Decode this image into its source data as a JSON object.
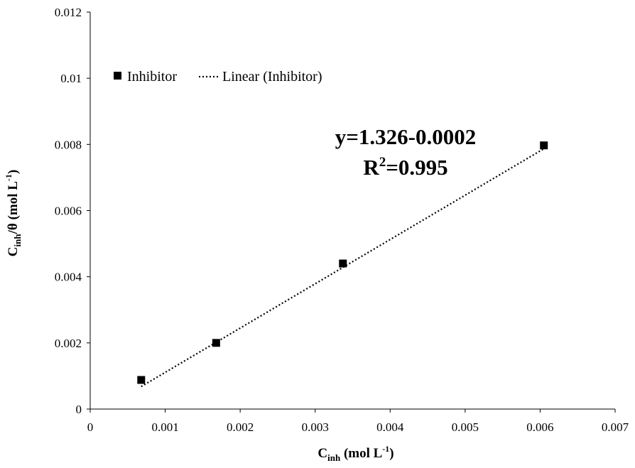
{
  "chart_data": {
    "type": "scatter",
    "x_axis": {
      "label_main": "C",
      "label_sub": "inh",
      "label_unit_pre": " (mol L",
      "label_unit_sup": "-1",
      "label_unit_post": ")",
      "lim": [
        0,
        0.007
      ],
      "ticks": [
        "0",
        "0.001",
        "0.002",
        "0.003",
        "0.004",
        "0.005",
        "0.006",
        "0.007"
      ],
      "tick_values": [
        0,
        0.001,
        0.002,
        0.003,
        0.004,
        0.005,
        0.006,
        0.007
      ]
    },
    "y_axis": {
      "label_main": "C",
      "label_sub": "inh",
      "label_mid": "/θ (mol L",
      "label_unit_sup": "-1",
      "label_unit_post": ")",
      "lim": [
        0,
        0.012
      ],
      "ticks": [
        "0",
        "0.002",
        "0.004",
        "0.006",
        "0.008",
        "0.01",
        "0.012"
      ],
      "tick_values": [
        0,
        0.002,
        0.004,
        0.006,
        0.008,
        0.01,
        0.012
      ]
    },
    "series": [
      {
        "name": "Inhibitor",
        "marker": "square",
        "color": "#000000",
        "points": [
          {
            "x": 0.00068,
            "y": 0.00088
          },
          {
            "x": 0.00168,
            "y": 0.002
          },
          {
            "x": 0.00337,
            "y": 0.0044
          },
          {
            "x": 0.00605,
            "y": 0.00797
          }
        ]
      }
    ],
    "trendline": {
      "name": "Linear (Inhibitor)",
      "style": "dotted",
      "color": "#000000",
      "x_start": 0.00068,
      "y_start": 0.00068,
      "x_end": 0.00605,
      "y_end": 0.00787
    },
    "legend": {
      "position": "top-left",
      "items": [
        "Inhibitor",
        "Linear (Inhibitor)"
      ]
    },
    "annotation": {
      "equation": "y=1.326-0.0002",
      "r2_prefix": "R",
      "r2_sup": "2",
      "r2_value": "=0.995"
    },
    "grid": false
  }
}
